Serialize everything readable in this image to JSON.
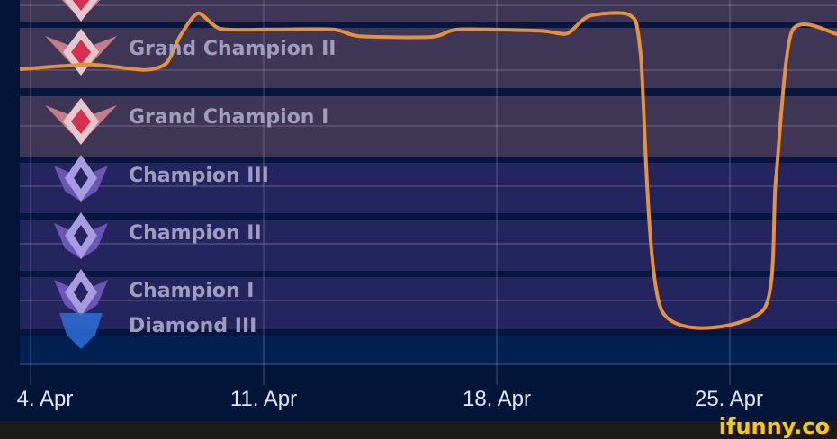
{
  "chart_data": {
    "type": "line",
    "title": "",
    "xlabel": "",
    "ylabel": "",
    "x_unit": "day of April",
    "xlim": [
      3.7,
      28.2
    ],
    "x_ticks": [
      {
        "value": 4,
        "label": "4. Apr"
      },
      {
        "value": 11,
        "label": "11. Apr"
      },
      {
        "value": 18,
        "label": "18. Apr"
      },
      {
        "value": 25,
        "label": "25. Apr"
      }
    ],
    "y_categories": [
      "Diamond III",
      "Champion I",
      "Champion II",
      "Champion III",
      "Grand Champion I",
      "Grand Champion II"
    ],
    "band_colors": {
      "Grand Champion": "#3f3656",
      "Champion": "#24245e",
      "Diamond": "#022052"
    },
    "grid": true,
    "series": [
      {
        "color": "#e6923a",
        "x": [
          3.68,
          5.78,
          7.41,
          8.08,
          8.49,
          9.03,
          9.7,
          11.19,
          13.08,
          13.89,
          16.05,
          16.86,
          19.3,
          20.11,
          20.78,
          22.0,
          22.32,
          22.95,
          26.0,
          26.38,
          26.86,
          28.22
        ],
        "y": [
          4.84,
          4.91,
          4.83,
          4.93,
          5.33,
          5.67,
          5.44,
          5.43,
          5.43,
          5.33,
          5.32,
          5.43,
          5.41,
          5.37,
          5.63,
          5.64,
          5.07,
          0.85,
          0.85,
          3.13,
          5.4,
          5.36
        ]
      }
    ]
  },
  "footer": {
    "watermark": "ifunny.co"
  }
}
